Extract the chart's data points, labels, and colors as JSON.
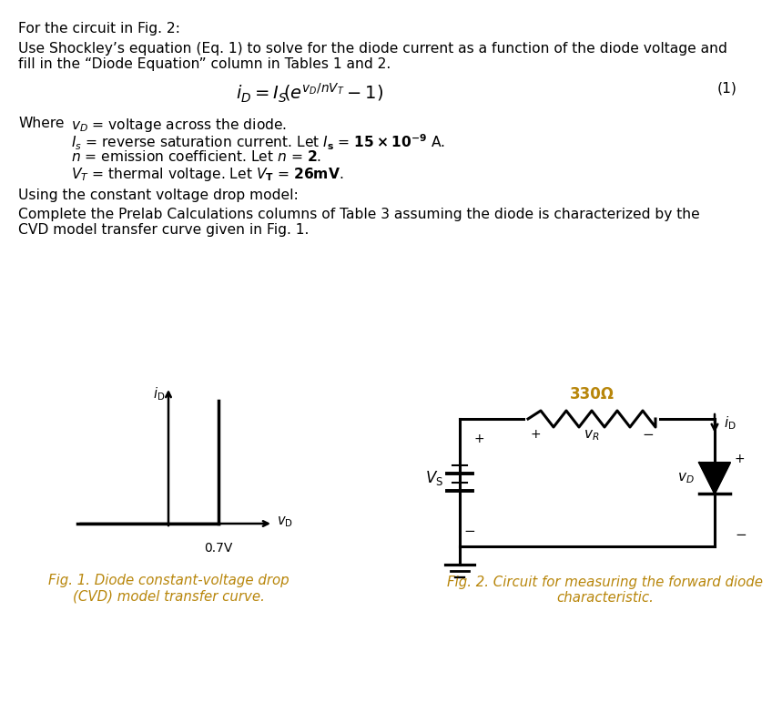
{
  "bg_color": "#ffffff",
  "text_color": "#000000",
  "fig_caption_color": "#b8860b",
  "resistor_color": "#b8860b",
  "line1": "For the circuit in Fig. 2:",
  "line2a": "Use Shockley’s equation (Eq. 1) to solve for the diode current as a function of the diode voltage and",
  "line2b": "fill in the “Diode Equation” column in Tables 1 and 2.",
  "line_where": "Where",
  "line_cvd": "Using the constant voltage drop model:",
  "line_prelab": "Complete the Prelab Calculations columns of Table 3 assuming the diode is characterized by the",
  "line_prelab2": "CVD model transfer curve given in Fig. 1.",
  "fig1_caption": "Fig. 1. Diode constant-voltage drop\n(CVD) model transfer curve.",
  "fig2_caption": "Fig. 2. Circuit for measuring the forward diode\ncharacteristic.",
  "resistor_label": "330Ω",
  "label_07": "0.7V",
  "fs_body": 11.2,
  "fs_small": 10.5,
  "fs_fig": 10.8
}
